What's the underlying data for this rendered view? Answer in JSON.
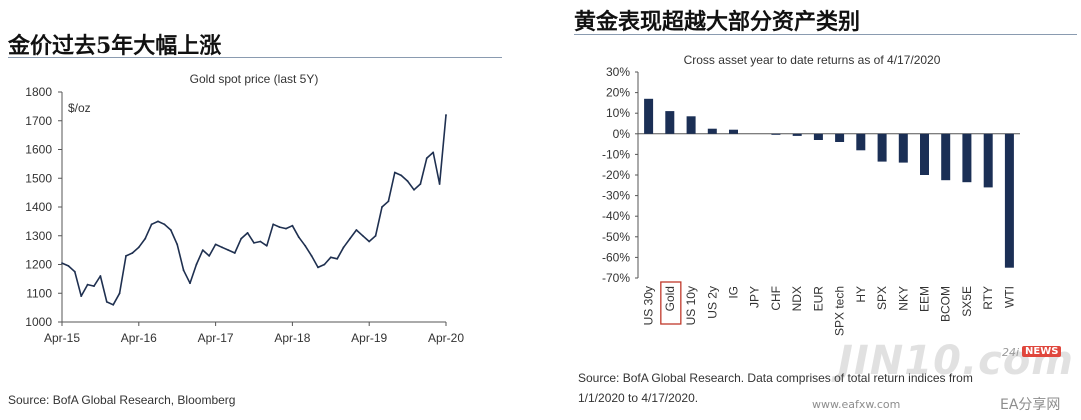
{
  "left": {
    "heading": "金价过去5年大幅上涨",
    "source": "Source: BofA Global Research, Bloomberg"
  },
  "right": {
    "heading": "黄金表现超越大部分资产类别",
    "source_line1": "Source: BofA Global Research. Data comprises of total return indices from",
    "source_line2": "1/1/2020 to 4/17/2020."
  },
  "watermark": {
    "logo_text": "JIN10.com",
    "tag_24": "24i",
    "tag_news": "NEWS",
    "url": "www.eafxw.com",
    "brand": "EA分享网"
  },
  "colors": {
    "line": "#1f3050",
    "bar": "#1b2f55",
    "highlight_box": "#c0392b"
  },
  "chart_data": [
    {
      "type": "line",
      "title": "Gold spot price (last 5Y)",
      "unit_label": "$/oz",
      "ylim": [
        1000,
        1800
      ],
      "yticks": [
        1000,
        1100,
        1200,
        1300,
        1400,
        1500,
        1600,
        1700,
        1800
      ],
      "xlim": [
        "2015-04",
        "2020-04"
      ],
      "xticks": [
        "Apr-15",
        "Apr-16",
        "Apr-17",
        "Apr-18",
        "Apr-19",
        "Apr-20"
      ],
      "grid": false,
      "series": [
        {
          "x": [
            "2015-04",
            "2015-05",
            "2015-06",
            "2015-07",
            "2015-08",
            "2015-09",
            "2015-10",
            "2015-11",
            "2015-12",
            "2016-01",
            "2016-02",
            "2016-03",
            "2016-04",
            "2016-05",
            "2016-06",
            "2016-07",
            "2016-08",
            "2016-09",
            "2016-10",
            "2016-11",
            "2016-12",
            "2017-01",
            "2017-02",
            "2017-03",
            "2017-04",
            "2017-05",
            "2017-06",
            "2017-07",
            "2017-08",
            "2017-09",
            "2017-10",
            "2017-11",
            "2017-12",
            "2018-01",
            "2018-02",
            "2018-03",
            "2018-04",
            "2018-05",
            "2018-06",
            "2018-07",
            "2018-08",
            "2018-09",
            "2018-10",
            "2018-11",
            "2018-12",
            "2019-01",
            "2019-02",
            "2019-03",
            "2019-04",
            "2019-05",
            "2019-06",
            "2019-07",
            "2019-08",
            "2019-09",
            "2019-10",
            "2019-11",
            "2019-12",
            "2020-01",
            "2020-02",
            "2020-03",
            "2020-04"
          ],
          "y": [
            1205,
            1195,
            1175,
            1090,
            1130,
            1125,
            1160,
            1070,
            1060,
            1100,
            1230,
            1240,
            1260,
            1290,
            1340,
            1350,
            1340,
            1320,
            1270,
            1180,
            1135,
            1200,
            1250,
            1230,
            1270,
            1260,
            1250,
            1240,
            1290,
            1310,
            1275,
            1280,
            1265,
            1340,
            1330,
            1325,
            1335,
            1295,
            1265,
            1230,
            1190,
            1200,
            1225,
            1220,
            1260,
            1290,
            1320,
            1300,
            1280,
            1300,
            1400,
            1420,
            1520,
            1510,
            1490,
            1460,
            1480,
            1570,
            1590,
            1480,
            1720
          ]
        }
      ]
    },
    {
      "type": "bar",
      "title": "Cross asset year to date returns as of 4/17/2020",
      "ylim": [
        -70,
        30
      ],
      "yticks": [
        "30%",
        "20%",
        "10%",
        "0%",
        "-10%",
        "-20%",
        "-30%",
        "-40%",
        "-50%",
        "-60%",
        "-70%"
      ],
      "categories": [
        "US 30y",
        "Gold",
        "US 10y",
        "US 2y",
        "IG",
        "JPY",
        "CHF",
        "NDX",
        "EUR",
        "SPX tech",
        "HY",
        "SPX",
        "NKY",
        "EEM",
        "BCOM",
        "SX5E",
        "RTY",
        "WTI"
      ],
      "values": [
        17,
        11,
        8.5,
        2.5,
        2,
        0,
        -0.5,
        -1,
        -3,
        -4,
        -8,
        -13.5,
        -14,
        -20,
        -22.5,
        -23.5,
        -26,
        -65
      ],
      "highlight": "Gold",
      "grid": false
    }
  ]
}
